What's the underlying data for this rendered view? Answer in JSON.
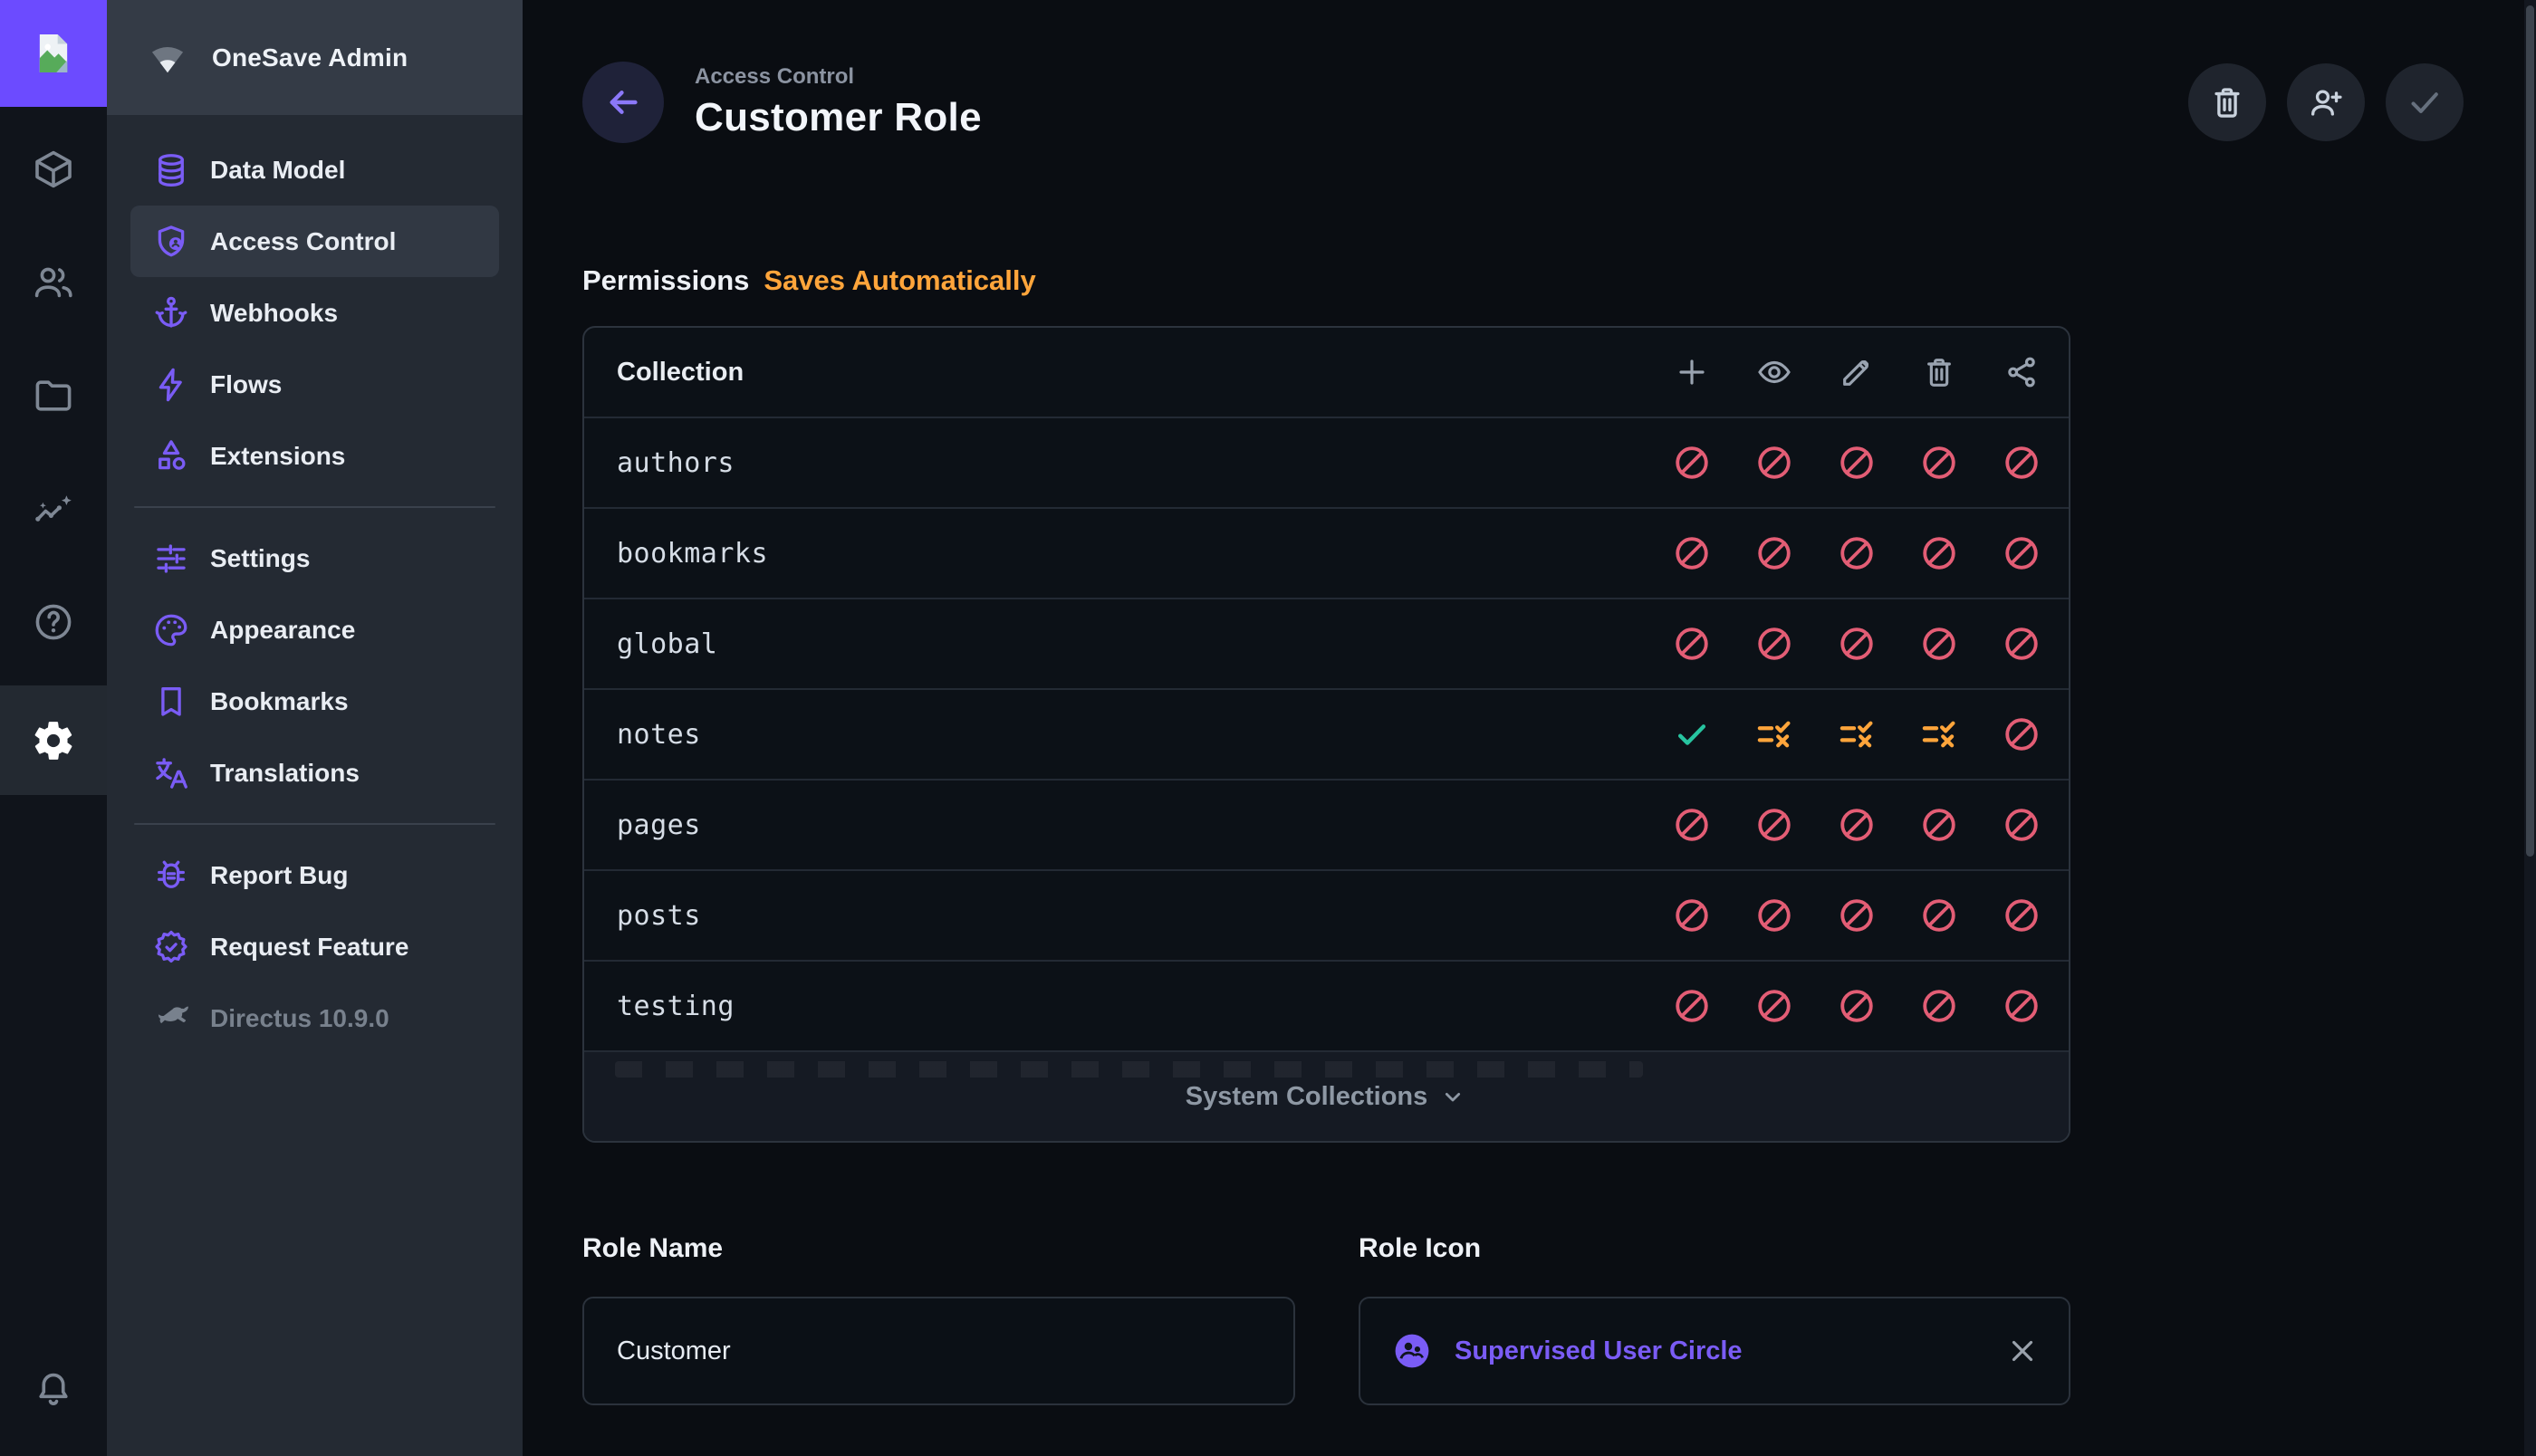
{
  "app": {
    "project_name": "OneSave Admin"
  },
  "header": {
    "breadcrumb": "Access Control",
    "title": "Customer Role",
    "actions": [
      {
        "name": "delete-role",
        "icon": "trash-icon"
      },
      {
        "name": "invite-user",
        "icon": "person-add-icon"
      },
      {
        "name": "save",
        "icon": "check-icon",
        "disabled": true
      }
    ]
  },
  "module_bar": {
    "modules": [
      "content-box-icon",
      "users-icon",
      "files-folder-icon",
      "insights-icon",
      "help-icon",
      "settings-gear-icon"
    ],
    "active_module": "settings",
    "notifications_icon": "bell-icon"
  },
  "sidebar": {
    "items": [
      {
        "label": "Data Model",
        "icon": "database-icon"
      },
      {
        "label": "Access Control",
        "icon": "shield-person-icon",
        "active": true
      },
      {
        "label": "Webhooks",
        "icon": "anchor-icon"
      },
      {
        "label": "Flows",
        "icon": "bolt-icon"
      },
      {
        "label": "Extensions",
        "icon": "shapes-icon"
      },
      {
        "label": "Settings",
        "icon": "tune-icon"
      },
      {
        "label": "Appearance",
        "icon": "palette-icon"
      },
      {
        "label": "Bookmarks",
        "icon": "bookmark-icon"
      },
      {
        "label": "Translations",
        "icon": "translate-icon"
      },
      {
        "label": "Report Bug",
        "icon": "bug-icon"
      },
      {
        "label": "Request Feature",
        "icon": "new-releases-icon"
      },
      {
        "label": "Directus 10.9.0",
        "icon": "directus-rabbit-icon",
        "muted": true
      }
    ]
  },
  "permissions": {
    "heading": "Permissions",
    "note": "Saves Automatically",
    "table": {
      "header": "Collection",
      "columns": [
        "create",
        "read",
        "update",
        "delete",
        "share"
      ],
      "header_action_icons": [
        "add-icon",
        "visibility-icon",
        "edit-icon",
        "delete-icon",
        "share-icon"
      ],
      "rows": [
        {
          "collection": "authors",
          "permissions": [
            "none",
            "none",
            "none",
            "none",
            "none"
          ]
        },
        {
          "collection": "bookmarks",
          "permissions": [
            "none",
            "none",
            "none",
            "none",
            "none"
          ]
        },
        {
          "collection": "global",
          "permissions": [
            "none",
            "none",
            "none",
            "none",
            "none"
          ]
        },
        {
          "collection": "notes",
          "permissions": [
            "full",
            "custom",
            "custom",
            "custom",
            "none"
          ]
        },
        {
          "collection": "pages",
          "permissions": [
            "none",
            "none",
            "none",
            "none",
            "none"
          ]
        },
        {
          "collection": "posts",
          "permissions": [
            "none",
            "none",
            "none",
            "none",
            "none"
          ]
        },
        {
          "collection": "testing",
          "permissions": [
            "none",
            "none",
            "none",
            "none",
            "none"
          ]
        }
      ],
      "footer_label": "System Collections"
    }
  },
  "form": {
    "role_name": {
      "label": "Role Name",
      "value": "Customer"
    },
    "role_icon": {
      "label": "Role Icon",
      "value": "Supervised User Circle"
    }
  },
  "colors": {
    "accent": "#7a5cf5",
    "logo_bg": "#6c4bff",
    "warning": "#ffa53b",
    "danger": "#e35d75",
    "success": "#27c4a0",
    "module_bar_bg": "#10141b",
    "nav_bg": "#242a33",
    "nav_header_bg": "#343b46",
    "main_bg": "#0a0d12",
    "panel_border": "#2c333d"
  }
}
